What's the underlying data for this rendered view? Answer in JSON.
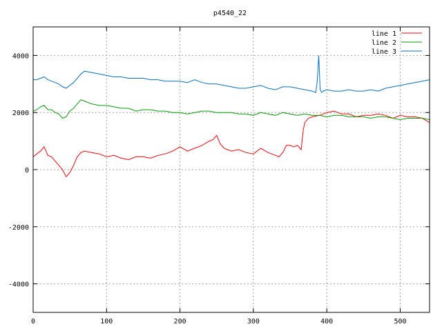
{
  "chart_data": {
    "type": "line",
    "title": "p4540_22",
    "xlabel": "",
    "ylabel": "",
    "xlim": [
      0,
      540
    ],
    "ylim": [
      -5000,
      5000
    ],
    "x_ticks": [
      0,
      100,
      200,
      300,
      400,
      500
    ],
    "y_ticks": [
      -4000,
      -2000,
      0,
      2000,
      4000
    ],
    "grid": true,
    "legend_position": "top-right",
    "series": [
      {
        "name": "line 1",
        "color": "#ff0000",
        "x": [
          0,
          5,
          10,
          15,
          20,
          25,
          30,
          35,
          40,
          45,
          50,
          55,
          60,
          65,
          70,
          80,
          90,
          100,
          110,
          120,
          130,
          140,
          150,
          160,
          170,
          180,
          190,
          200,
          210,
          220,
          230,
          240,
          245,
          250,
          255,
          260,
          265,
          270,
          280,
          290,
          300,
          310,
          320,
          330,
          335,
          340,
          345,
          350,
          355,
          360,
          365,
          368,
          370,
          375,
          380,
          390,
          400,
          410,
          420,
          430,
          440,
          450,
          460,
          470,
          480,
          490,
          500,
          510,
          520,
          530,
          540
        ],
        "values": [
          450,
          550,
          650,
          800,
          500,
          450,
          300,
          150,
          0,
          -250,
          -100,
          150,
          450,
          600,
          650,
          600,
          550,
          450,
          500,
          400,
          350,
          450,
          450,
          400,
          500,
          550,
          650,
          800,
          650,
          750,
          850,
          1000,
          1050,
          1200,
          900,
          750,
          700,
          650,
          700,
          600,
          550,
          750,
          600,
          500,
          450,
          600,
          850,
          850,
          800,
          850,
          700,
          1400,
          1650,
          1800,
          1850,
          1900,
          2000,
          2050,
          1950,
          1950,
          1850,
          1900,
          1900,
          1950,
          1900,
          1800,
          1900,
          1850,
          1850,
          1800,
          1650
        ]
      },
      {
        "name": "line 2",
        "color": "#00a000",
        "x": [
          0,
          5,
          10,
          15,
          20,
          25,
          30,
          35,
          40,
          45,
          50,
          55,
          60,
          65,
          70,
          80,
          90,
          100,
          110,
          120,
          130,
          140,
          150,
          160,
          170,
          180,
          190,
          200,
          210,
          220,
          230,
          240,
          250,
          260,
          270,
          280,
          290,
          300,
          310,
          320,
          330,
          340,
          350,
          360,
          370,
          380,
          390,
          400,
          410,
          420,
          430,
          440,
          450,
          460,
          470,
          480,
          490,
          500,
          510,
          520,
          530,
          540
        ],
        "values": [
          2050,
          2100,
          2200,
          2250,
          2100,
          2100,
          2000,
          1950,
          1800,
          1850,
          2050,
          2150,
          2300,
          2450,
          2400,
          2300,
          2250,
          2250,
          2200,
          2150,
          2150,
          2050,
          2100,
          2100,
          2050,
          2050,
          2000,
          2000,
          1950,
          2000,
          2050,
          2050,
          2000,
          2000,
          2000,
          1950,
          1950,
          1900,
          2000,
          1950,
          1900,
          2000,
          1950,
          1900,
          1950,
          1900,
          1900,
          1850,
          1900,
          1900,
          1850,
          1850,
          1850,
          1800,
          1850,
          1850,
          1800,
          1750,
          1800,
          1800,
          1800,
          1750
        ]
      },
      {
        "name": "line 3",
        "color": "#0070d0",
        "x": [
          0,
          5,
          10,
          15,
          20,
          25,
          30,
          35,
          40,
          45,
          50,
          55,
          60,
          65,
          70,
          80,
          90,
          100,
          110,
          120,
          130,
          140,
          150,
          160,
          170,
          180,
          190,
          200,
          210,
          220,
          230,
          240,
          250,
          260,
          270,
          280,
          290,
          300,
          310,
          320,
          330,
          340,
          350,
          360,
          370,
          380,
          385,
          387,
          389,
          391,
          393,
          395,
          400,
          410,
          420,
          430,
          440,
          450,
          460,
          470,
          480,
          490,
          500,
          510,
          520,
          530,
          540
        ],
        "values": [
          3150,
          3150,
          3200,
          3250,
          3150,
          3100,
          3050,
          3000,
          2900,
          2850,
          2950,
          3050,
          3200,
          3350,
          3450,
          3400,
          3350,
          3300,
          3250,
          3250,
          3200,
          3200,
          3200,
          3150,
          3150,
          3100,
          3100,
          3100,
          3050,
          3150,
          3050,
          3000,
          3000,
          2950,
          2900,
          2850,
          2850,
          2900,
          2950,
          2850,
          2800,
          2900,
          2900,
          2850,
          2800,
          2750,
          2700,
          3100,
          4000,
          2800,
          2700,
          2750,
          2800,
          2750,
          2750,
          2800,
          2750,
          2750,
          2800,
          2750,
          2850,
          2900,
          2950,
          3000,
          3050,
          3100,
          3150
        ]
      }
    ]
  }
}
